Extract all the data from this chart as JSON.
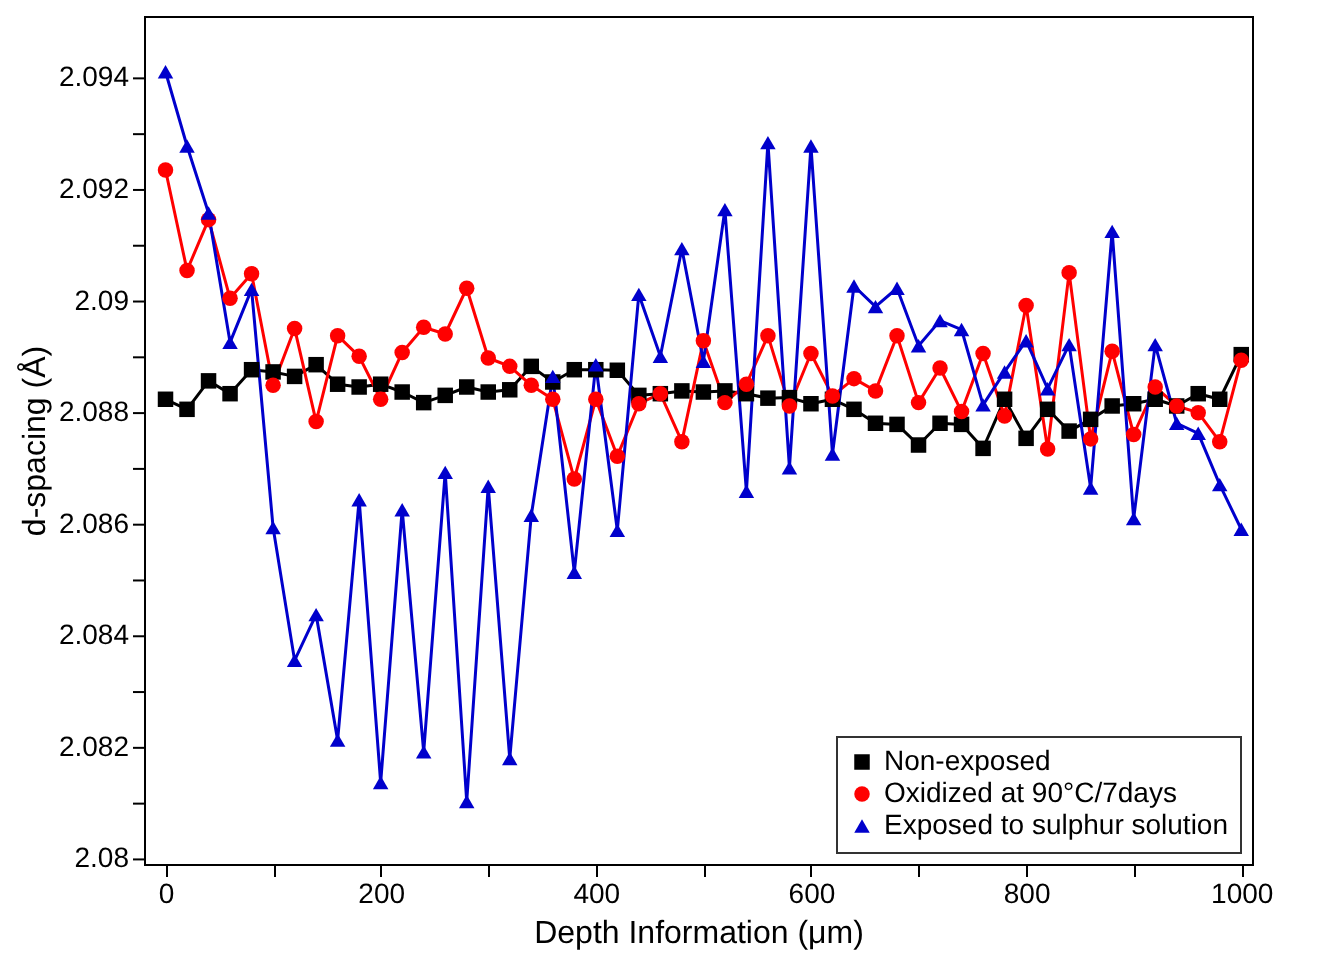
{
  "chart_data": {
    "type": "line",
    "xlabel": "Depth Information (μm)",
    "ylabel": "d-spacing (Å)",
    "x": [
      0,
      20,
      40,
      60,
      80,
      100,
      120,
      140,
      160,
      180,
      200,
      220,
      240,
      260,
      280,
      300,
      320,
      340,
      360,
      380,
      400,
      420,
      440,
      460,
      480,
      500,
      520,
      540,
      560,
      580,
      600,
      620,
      640,
      660,
      680,
      700,
      720,
      740,
      760,
      780,
      800,
      820,
      840,
      860,
      880,
      900,
      920,
      940,
      960,
      980,
      1000
    ],
    "xlim": [
      -20,
      1010
    ],
    "xticks": [
      0,
      {
        "value": 100,
        "label": null
      },
      200,
      {
        "value": 300,
        "label": null
      },
      400,
      {
        "value": 500,
        "label": null
      },
      600,
      {
        "value": 700,
        "label": null
      },
      800,
      {
        "value": 900,
        "label": null
      },
      1000
    ],
    "ylim": [
      2.0799,
      2.0951
    ],
    "yticks": [
      2.08,
      {
        "value": 2.081,
        "label": null
      },
      2.082,
      {
        "value": 2.083,
        "label": null
      },
      2.084,
      {
        "value": 2.085,
        "label": null
      },
      2.086,
      {
        "value": 2.087,
        "label": null
      },
      2.088,
      {
        "value": 2.089,
        "label": null
      },
      2.09,
      {
        "value": 2.091,
        "label": null
      },
      2.092,
      {
        "value": 2.093,
        "label": null
      },
      2.094
    ],
    "legend": "bottom right",
    "grid": false,
    "series": [
      {
        "name": "Non-exposed",
        "color": "#000000",
        "marker": "square",
        "values": [
          2.08823,
          2.08805,
          2.08856,
          2.08833,
          2.08876,
          2.08872,
          2.08864,
          2.08885,
          2.0885,
          2.08845,
          2.0885,
          2.08836,
          2.08817,
          2.0883,
          2.08845,
          2.08836,
          2.0884,
          2.08882,
          2.08854,
          2.08876,
          2.08876,
          2.08875,
          2.0883,
          2.08833,
          2.08838,
          2.08836,
          2.08838,
          2.08833,
          2.08825,
          2.08826,
          2.08815,
          2.08823,
          2.08805,
          2.0878,
          2.08778,
          2.08741,
          2.0878,
          2.08778,
          2.08735,
          2.08823,
          2.08753,
          2.08805,
          2.08766,
          2.08787,
          2.08811,
          2.08815,
          2.08823,
          2.08811,
          2.08833,
          2.08823,
          2.08903
        ]
      },
      {
        "name": "Oxidized at 90°C/7days",
        "color": "#ff0000",
        "marker": "circle",
        "values": [
          2.09234,
          2.09054,
          2.09145,
          2.09004,
          2.09048,
          2.08848,
          2.0895,
          2.08783,
          2.08937,
          2.089,
          2.08823,
          2.08907,
          2.08952,
          2.0894,
          2.09022,
          2.08897,
          2.08882,
          2.08848,
          2.08823,
          2.0868,
          2.08823,
          2.08721,
          2.08815,
          2.08833,
          2.08747,
          2.08928,
          2.08817,
          2.0885,
          2.08937,
          2.08811,
          2.08905,
          2.08829,
          2.0886,
          2.08838,
          2.08937,
          2.08817,
          2.08879,
          2.08801,
          2.08905,
          2.08793,
          2.08991,
          2.08734,
          2.0905,
          2.08752,
          2.08909,
          2.0876,
          2.08845,
          2.08811,
          2.08799,
          2.08747,
          2.08893
        ]
      },
      {
        "name": "Exposed to sulphur solution",
        "color": "#0000cc",
        "marker": "triangle",
        "values": [
          2.0941,
          2.09277,
          2.09157,
          2.08925,
          2.0902,
          2.08593,
          2.08355,
          2.08437,
          2.08212,
          2.08643,
          2.08136,
          2.08625,
          2.08191,
          2.08692,
          2.08102,
          2.08667,
          2.08179,
          2.08615,
          2.08864,
          2.08513,
          2.08885,
          2.08588,
          2.09011,
          2.089,
          2.09093,
          2.08891,
          2.09163,
          2.08658,
          2.09283,
          2.087,
          2.09277,
          2.08725,
          2.09026,
          2.08989,
          2.09022,
          2.08919,
          2.08964,
          2.08948,
          2.08813,
          2.08872,
          2.08928,
          2.08842,
          2.08921,
          2.08664,
          2.09124,
          2.08609,
          2.08921,
          2.0878,
          2.08762,
          2.0867,
          2.0859
        ]
      }
    ]
  }
}
